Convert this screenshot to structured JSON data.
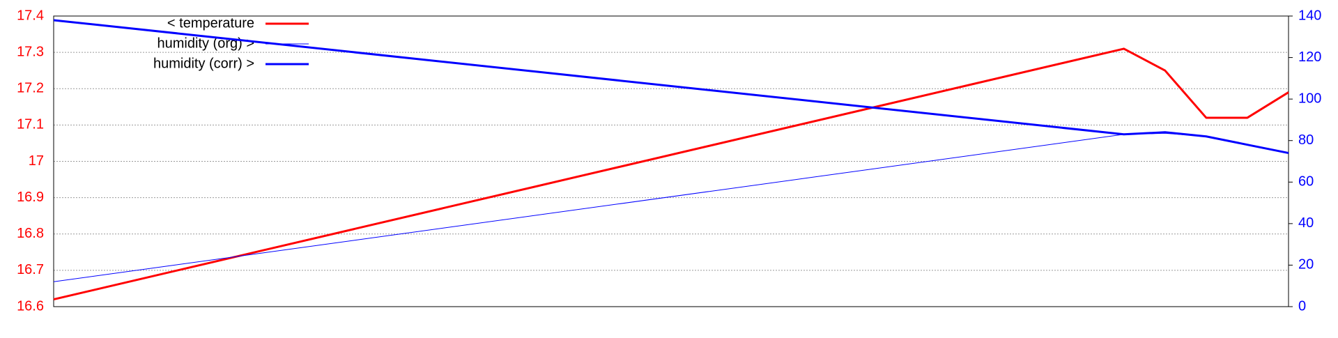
{
  "chart_data": {
    "type": "line",
    "x": [
      0,
      26,
      27,
      28,
      29,
      30
    ],
    "xlim": [
      0,
      30
    ],
    "ylim": [
      16.6,
      17.4
    ],
    "yticks": [
      16.6,
      16.7,
      16.8,
      16.9,
      17,
      17.1,
      17.2,
      17.3,
      17.4
    ],
    "y2lim": [
      0,
      140
    ],
    "y2ticks": [
      0,
      20,
      40,
      60,
      80,
      100,
      120,
      140
    ],
    "grid": true,
    "legend": "top-left",
    "series": [
      {
        "name": "< temperature",
        "color": "#ff0000",
        "width": 3,
        "values": [
          16.62,
          17.31,
          17.25,
          17.12,
          17.12,
          17.19
        ]
      },
      {
        "name": "humidity (org) >",
        "color": "#0000ff",
        "width": 1,
        "axis": "y2",
        "values": [
          12,
          83,
          83.5,
          82,
          78,
          74
        ]
      },
      {
        "name": "humidity (corr) >",
        "color": "#0000ff",
        "width": 3,
        "axis": "y2",
        "values": [
          138,
          83,
          84,
          82,
          78,
          74
        ]
      }
    ]
  }
}
